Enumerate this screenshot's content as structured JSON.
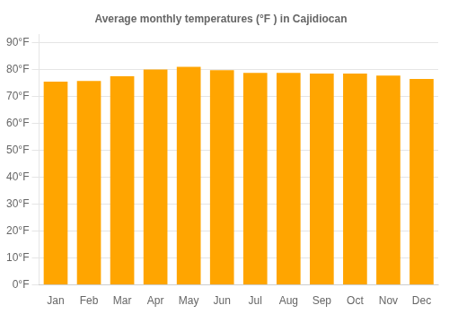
{
  "chart_data": {
    "type": "bar",
    "title": "Average monthly temperatures (°F ) in Cajidiocan",
    "categories": [
      "Jan",
      "Feb",
      "Mar",
      "Apr",
      "May",
      "Jun",
      "Jul",
      "Aug",
      "Sep",
      "Oct",
      "Nov",
      "Dec"
    ],
    "values": [
      75.5,
      75.7,
      77.5,
      80.0,
      81.0,
      79.7,
      78.7,
      78.7,
      78.5,
      78.5,
      77.7,
      76.5
    ],
    "color": "#FFA500",
    "ylim": [
      0,
      93
    ],
    "yticks": [
      {
        "value": 0,
        "label": "0°F"
      },
      {
        "value": 10,
        "label": "10°F"
      },
      {
        "value": 20,
        "label": "20°F"
      },
      {
        "value": 30,
        "label": "30°F"
      },
      {
        "value": 40,
        "label": "40°F"
      },
      {
        "value": 50,
        "label": "50°F"
      },
      {
        "value": 60,
        "label": "60°F"
      },
      {
        "value": 70,
        "label": "70°F"
      },
      {
        "value": 80,
        "label": "80°F"
      },
      {
        "value": 90,
        "label": "90°F"
      }
    ],
    "grid": true
  }
}
